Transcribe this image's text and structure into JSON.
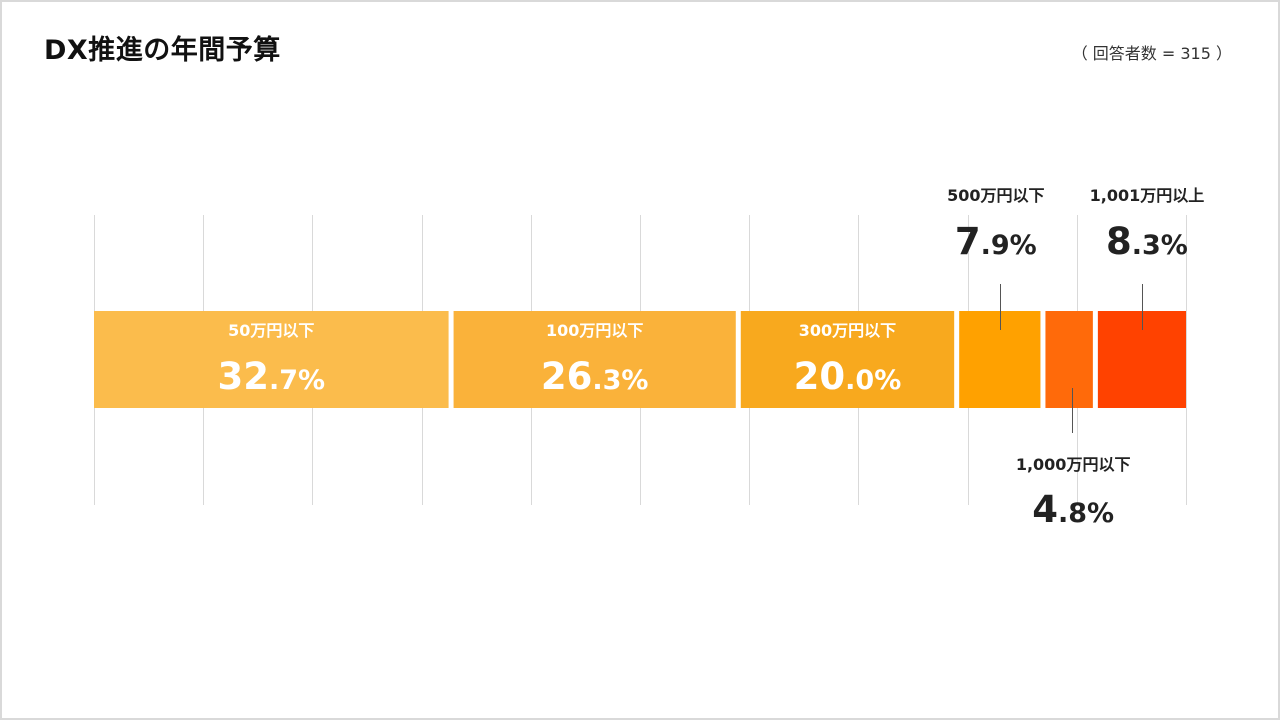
{
  "title": "DX推進の年間予算",
  "respondents": "（ 回答者数 = 315 ）",
  "chart_data": {
    "type": "bar",
    "orientation": "horizontal-stacked-100",
    "title": "DX推進の年間予算",
    "xlim": [
      0,
      100
    ],
    "grid": true,
    "legend": "none",
    "unit": "%",
    "series": [
      {
        "name": "50万円以下",
        "value": 32.7,
        "int": "32",
        "dec": ".7%",
        "color": "#FBBC4C",
        "label_pos": "inside"
      },
      {
        "name": "100万円以下",
        "value": 26.3,
        "int": "26",
        "dec": ".3%",
        "color": "#FAB23A",
        "label_pos": "inside"
      },
      {
        "name": "300万円以下",
        "value": 20.0,
        "int": "20",
        "dec": ".0%",
        "color": "#F8A91E",
        "label_pos": "inside"
      },
      {
        "name": "500万円以下",
        "value": 7.9,
        "int": "7",
        "dec": ".9%",
        "color": "#FFA100",
        "label_pos": "above"
      },
      {
        "name": "1,000万円以下",
        "value": 4.8,
        "int": "4",
        "dec": ".8%",
        "color": "#FF6A0A",
        "label_pos": "below"
      },
      {
        "name": "1,001万円以上",
        "value": 8.3,
        "int": "8",
        "dec": ".3%",
        "color": "#FF4200",
        "label_pos": "above"
      }
    ]
  }
}
